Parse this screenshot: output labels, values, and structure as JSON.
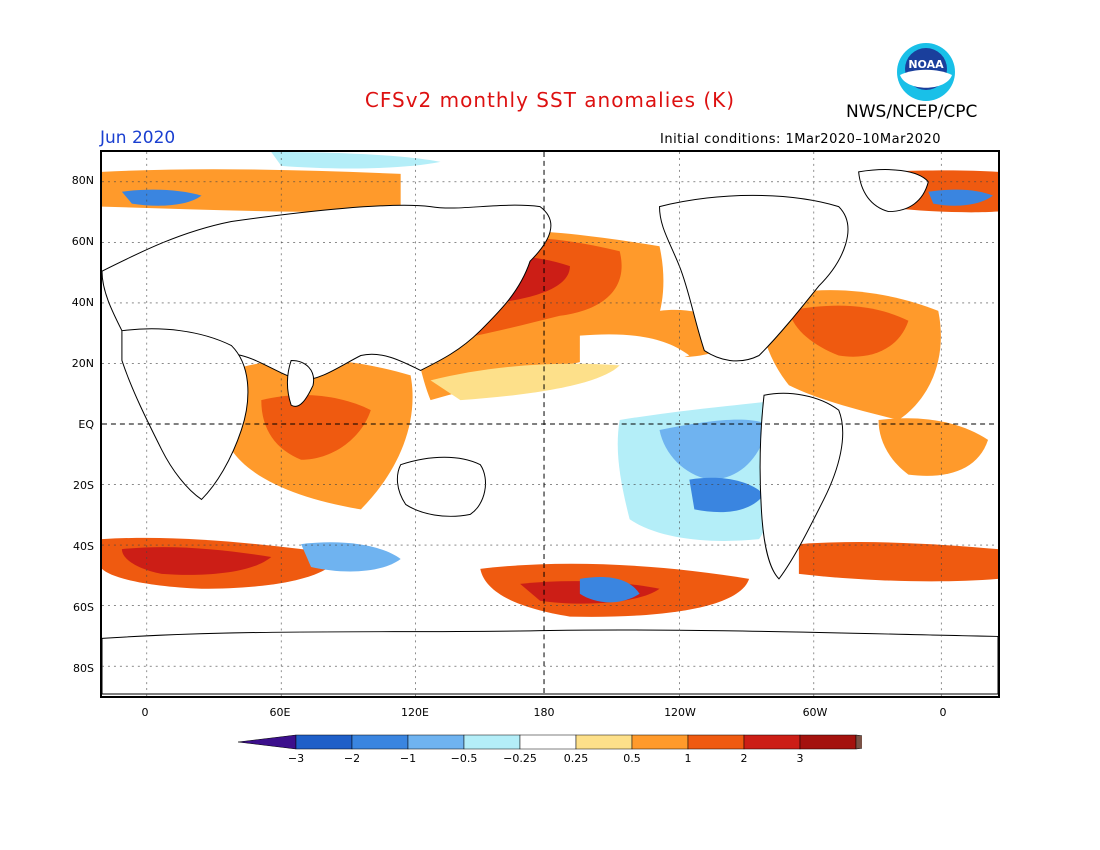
{
  "header": {
    "title": "CFSv2 monthly SST anomalies (K)",
    "agency": "NWS/NCEP/CPC",
    "month": "Jun 2020",
    "initial_conditions": "Initial conditions: 1Mar2020–10Mar2020",
    "logo_text": "NOAA"
  },
  "map": {
    "lat_labels": [
      "80N",
      "60N",
      "40N",
      "20N",
      "EQ",
      "20S",
      "40S",
      "60S",
      "80S"
    ],
    "lon_labels": [
      "0",
      "60E",
      "120E",
      "180",
      "120W",
      "60W",
      "0"
    ]
  },
  "colorbar": {
    "labels": [
      "−3",
      "−2",
      "−1",
      "−0.5",
      "−0.25",
      "0.25",
      "0.5",
      "1",
      "2",
      "3"
    ],
    "colors": [
      "#3c0f8c",
      "#1f5fc8",
      "#3a85e0",
      "#6fb3f0",
      "#b4eef8",
      "#ffffff",
      "#fde08a",
      "#ff9a2b",
      "#ef5a10",
      "#cc1e16",
      "#a4120e",
      "#7a5246"
    ]
  },
  "colors": {
    "title": "#dd1111",
    "month": "#1a3fd0",
    "land": "#ffffff",
    "neutral_ocean": "#ffffff"
  }
}
